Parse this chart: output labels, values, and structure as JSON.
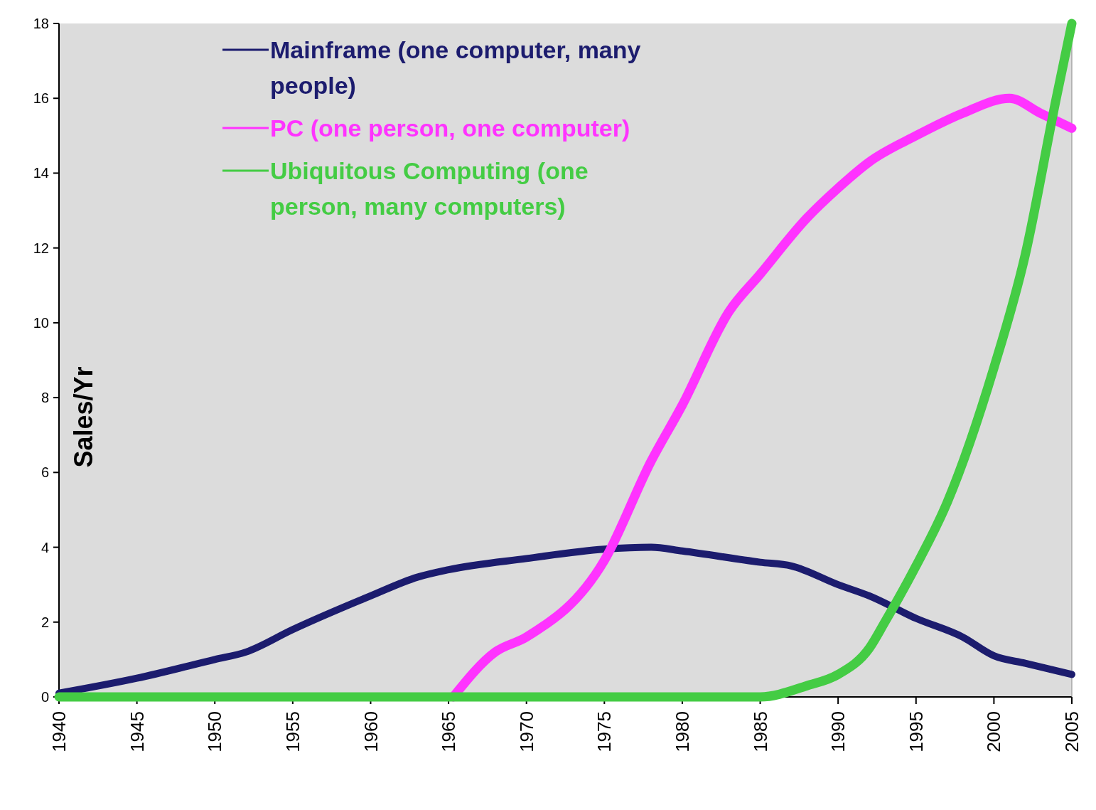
{
  "chart_data": {
    "type": "line",
    "ylabel": "Sales/Yr",
    "xlim": [
      1940,
      2005
    ],
    "xticks": [
      1940,
      1945,
      1950,
      1955,
      1960,
      1965,
      1970,
      1975,
      1980,
      1985,
      1990,
      1995,
      2000,
      2005
    ],
    "ylim": [
      0,
      18
    ],
    "yticks": [
      0,
      2,
      4,
      6,
      8,
      10,
      12,
      14,
      16,
      18
    ],
    "grid": false,
    "legend": "top left",
    "marker": "none",
    "line_style": "solid",
    "series": [
      {
        "name": "Mainframe (one computer, many people)",
        "color": "#1c1c6e",
        "x": [
          1940,
          1945,
          1950,
          1952,
          1955,
          1960,
          1963,
          1965,
          1970,
          1975,
          1978,
          1980,
          1985,
          1987,
          1990,
          1992,
          1995,
          1998,
          2000,
          2002,
          2005
        ],
        "values": [
          0.1,
          0.5,
          1.0,
          1.2,
          1.8,
          2.7,
          3.2,
          3.4,
          3.7,
          3.95,
          4.0,
          3.9,
          3.6,
          3.5,
          3.0,
          2.7,
          2.1,
          1.6,
          1.1,
          0.9,
          0.6
        ]
      },
      {
        "name": "PC (one person, one computer)",
        "color": "#ff33ff",
        "x": [
          1965.3,
          1968,
          1970,
          1975,
          1978,
          1980,
          1983,
          1985,
          1988,
          1990,
          1992,
          1995,
          1998,
          2001,
          2003,
          2005
        ],
        "values": [
          0,
          1.2,
          1.6,
          3.65,
          6.3,
          7.8,
          10.3,
          11.3,
          12.8,
          13.6,
          14.3,
          15.0,
          15.6,
          16.0,
          15.6,
          15.2
        ]
      },
      {
        "name": "Ubiquitous Computing (one person, many computers)",
        "color": "#44cc44",
        "x": [
          1940,
          1985,
          1988,
          1990,
          1992,
          1993,
          1995,
          1997,
          2000,
          2002,
          2004,
          2005
        ],
        "values": [
          0,
          0,
          0.3,
          0.6,
          1.3,
          2.0,
          3.5,
          5.2,
          8.8,
          11.8,
          16.0,
          18.0
        ]
      }
    ]
  }
}
